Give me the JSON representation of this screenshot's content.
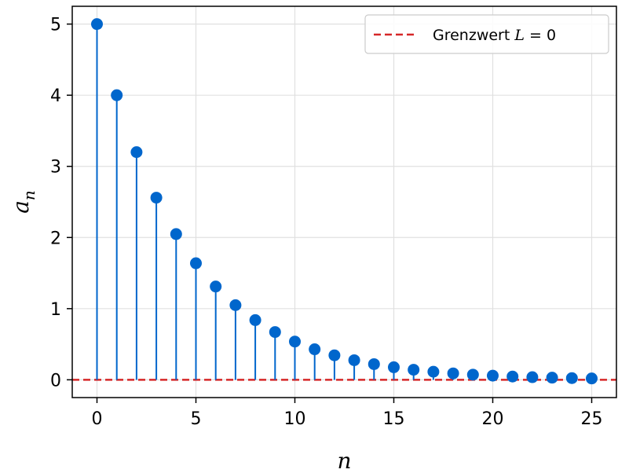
{
  "chart_data": {
    "type": "stem",
    "x": [
      0,
      1,
      2,
      3,
      4,
      5,
      6,
      7,
      8,
      9,
      10,
      11,
      12,
      13,
      14,
      15,
      16,
      17,
      18,
      19,
      20,
      21,
      22,
      23,
      24,
      25
    ],
    "y": [
      5.0,
      4.0,
      3.2,
      2.56,
      2.048,
      1.638,
      1.311,
      1.049,
      0.839,
      0.671,
      0.537,
      0.429,
      0.344,
      0.275,
      0.22,
      0.176,
      0.141,
      0.113,
      0.09,
      0.072,
      0.058,
      0.046,
      0.037,
      0.03,
      0.024,
      0.019
    ],
    "xlabel": "n",
    "ylabel_base": "a",
    "ylabel_sub": "n",
    "xlim": [
      -1.25,
      26.25
    ],
    "ylim": [
      -0.25,
      5.25
    ],
    "xticks": [
      0,
      5,
      10,
      15,
      20,
      25
    ],
    "yticks": [
      0,
      1,
      2,
      3,
      4,
      5
    ],
    "grid": true,
    "legend": {
      "placement": "top-right",
      "prefix": "Grenzwert ",
      "symbol": "L",
      "suffix": " = 0"
    },
    "limit_value": 0,
    "colors": {
      "stem": "#0066cc",
      "limit": "#d62728",
      "grid": "#e0e0e0"
    }
  }
}
